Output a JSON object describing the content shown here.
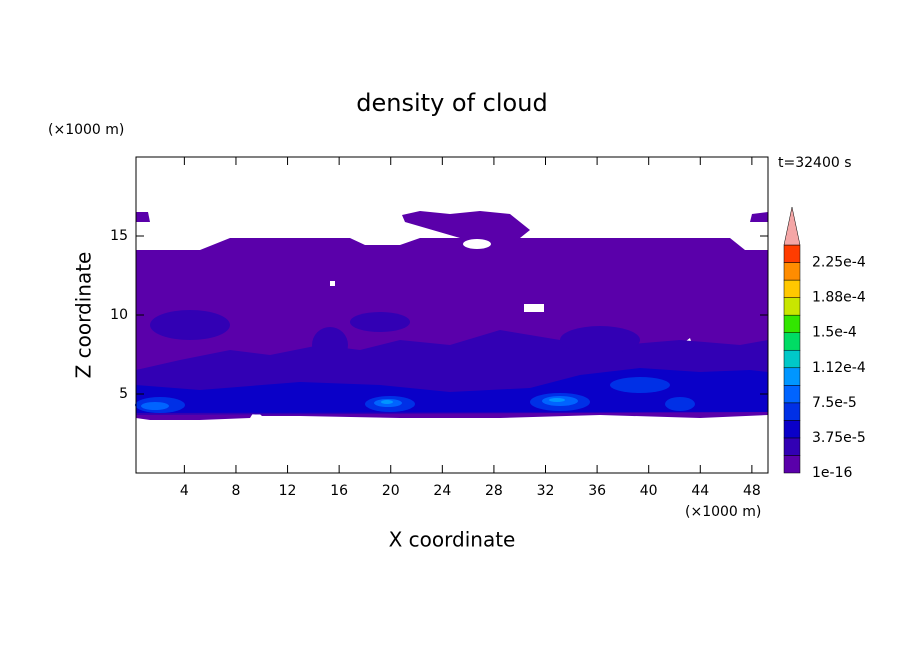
{
  "chart_data": {
    "type": "contour",
    "title": "density of cloud",
    "x_label": "X coordinate",
    "y_label": "Z coordinate",
    "x_unit": "(×1000 m)",
    "y_unit": "(×1000 m)",
    "annotation": "t=32400 s",
    "xlim": [
      0.25,
      49.25
    ],
    "ylim": [
      0,
      20
    ],
    "xticks": [
      4,
      8,
      12,
      16,
      20,
      24,
      28,
      32,
      36,
      40,
      44,
      48
    ],
    "yticks": [
      5,
      10,
      15
    ],
    "levels": [
      {
        "value": 1e-16,
        "label": "1e-16"
      },
      1.875e-05,
      {
        "value": 3.75e-05,
        "label": "3.75e-5"
      },
      5.625e-05,
      {
        "value": 7.5e-05,
        "label": "7.5e-5"
      },
      9.375e-05,
      {
        "value": 0.000112,
        "label": "1.12e-4"
      },
      0.00013125,
      {
        "value": 0.00015,
        "label": "1.5e-4"
      },
      0.00016875,
      {
        "value": 0.000188,
        "label": "1.88e-4"
      },
      0.00020625,
      {
        "value": 0.000225,
        "label": "2.25e-4"
      }
    ],
    "colors": [
      "#5a00aa",
      "#3200b4",
      "#0a00c8",
      "#0030e6",
      "#0064ff",
      "#0096ff",
      "#00c8c8",
      "#00dc64",
      "#32e600",
      "#c8e600",
      "#ffc800",
      "#ff8c00",
      "#ff3c00"
    ],
    "extend_color": "#f4a6a6"
  }
}
